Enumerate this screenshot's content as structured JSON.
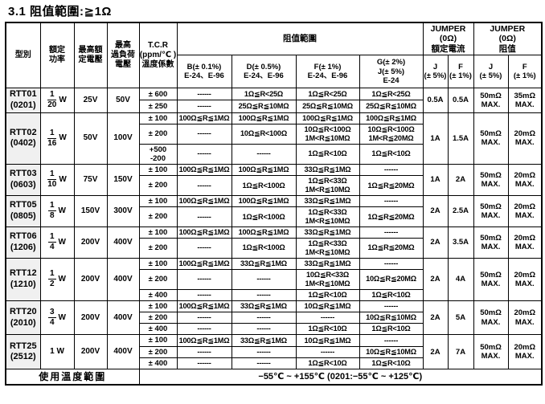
{
  "title": "3.1 阻值範圍:≧1Ω",
  "header": {
    "col_model": "型別",
    "col_power": "額定\n功率",
    "col_max_voltage": "最高額\n定電壓",
    "col_overload": "最高\n過負荷\n電壓",
    "col_tcr": "T.C.R\n(ppm/℃ )\n溫度係數",
    "group_range": "阻值範圍",
    "range_b": "B(± 0.1%)\nE-24、E-96",
    "range_d": "D(± 0.5%)\nE-24、E-96",
    "range_f": "F(± 1%)\nE-24、E-96",
    "range_g": "G(± 2%)\nJ(± 5%)\nE-24",
    "group_jumper_current": "JUMPER\n(0Ω)\n額定電流",
    "group_jumper_resistance": "JUMPER\n(0Ω)\n阻值",
    "sub_j": "J\n(± 5%)",
    "sub_f": "F\n(± 1%)"
  },
  "rows": [
    {
      "model": "RTT01",
      "size": "(0201)",
      "power": {
        "num": "1",
        "den": "20",
        "unit": "W"
      },
      "max_voltage": "25V",
      "overload_voltage": "50V",
      "tcr_rows": [
        {
          "tcr": "± 600",
          "b": "------",
          "d": "1Ω≦R<25Ω",
          "f": "1Ω≦R<25Ω",
          "g": "1Ω≦R<25Ω"
        },
        {
          "tcr": "± 250",
          "b": "------",
          "d": "25Ω≦R≦10MΩ",
          "f": "25Ω≦R≦10MΩ",
          "g": "25Ω≦R≦10MΩ"
        }
      ],
      "jumper": {
        "j_current": "0.5A",
        "f_current": "0.5A",
        "j_res": "50mΩ\nMAX.",
        "f_res": "35mΩ\nMAX."
      }
    },
    {
      "model": "RTT02",
      "size": "(0402)",
      "power": {
        "num": "1",
        "den": "16",
        "unit": "W"
      },
      "max_voltage": "50V",
      "overload_voltage": "100V",
      "tcr_rows": [
        {
          "tcr": "± 100",
          "b": "100Ω≦R≦1MΩ",
          "d": "100Ω≦R≦1MΩ",
          "f": "100Ω≦R≦1MΩ",
          "g": "100Ω≦R≦1MΩ"
        },
        {
          "tcr": "± 200",
          "b": "------",
          "d": "10Ω≦R<100Ω",
          "f": "10Ω≦R<100Ω\n1M<R≦10MΩ",
          "g": "10Ω≦R<100Ω\n1M<R≦20MΩ"
        },
        {
          "tcr": "+500\n-200",
          "b": "------",
          "d": "------",
          "f": "1Ω≦R<10Ω",
          "g": "1Ω≦R<10Ω"
        }
      ],
      "jumper": {
        "j_current": "1A",
        "f_current": "1.5A",
        "j_res": "50mΩ\nMAX.",
        "f_res": "20mΩ\nMAX."
      }
    },
    {
      "model": "RTT03",
      "size": "(0603)",
      "power": {
        "num": "1",
        "den": "10",
        "unit": "W"
      },
      "max_voltage": "75V",
      "overload_voltage": "150V",
      "tcr_rows": [
        {
          "tcr": "± 100",
          "b": "100Ω≦R≦1MΩ",
          "d": "100Ω≦R≦1MΩ",
          "f": "33Ω≦R≦1MΩ",
          "g": "------"
        },
        {
          "tcr": "± 200",
          "b": "------",
          "d": "1Ω≦R<100Ω",
          "f": "1Ω≦R<33Ω\n1M<R≦10MΩ",
          "g": "1Ω≦R≦20MΩ"
        }
      ],
      "jumper": {
        "j_current": "1A",
        "f_current": "2A",
        "j_res": "50mΩ\nMAX.",
        "f_res": "20mΩ\nMAX."
      }
    },
    {
      "model": "RTT05",
      "size": "(0805)",
      "power": {
        "num": "1",
        "den": "8",
        "unit": "W"
      },
      "max_voltage": "150V",
      "overload_voltage": "300V",
      "tcr_rows": [
        {
          "tcr": "± 100",
          "b": "100Ω≦R≦1MΩ",
          "d": "100Ω≦R≦1MΩ",
          "f": "33Ω≦R≦1MΩ",
          "g": "------"
        },
        {
          "tcr": "± 200",
          "b": "------",
          "d": "1Ω≦R<100Ω",
          "f": "1Ω≦R<33Ω\n1M<R≦10MΩ",
          "g": "1Ω≦R≦20MΩ"
        }
      ],
      "jumper": {
        "j_current": "2A",
        "f_current": "2.5A",
        "j_res": "50mΩ\nMAX.",
        "f_res": "20mΩ\nMAX."
      }
    },
    {
      "model": "RTT06",
      "size": "(1206)",
      "power": {
        "num": "1",
        "den": "4",
        "unit": "W"
      },
      "max_voltage": "200V",
      "overload_voltage": "400V",
      "tcr_rows": [
        {
          "tcr": "± 100",
          "b": "100Ω≦R≦1MΩ",
          "d": "100Ω≦R≦1MΩ",
          "f": "33Ω≦R≦1MΩ",
          "g": "------"
        },
        {
          "tcr": "± 200",
          "b": "------",
          "d": "1Ω≦R<100Ω",
          "f": "1Ω≦R<33Ω\n1M<R≦10MΩ",
          "g": "1Ω≦R≦20MΩ"
        }
      ],
      "jumper": {
        "j_current": "2A",
        "f_current": "3.5A",
        "j_res": "50mΩ\nMAX.",
        "f_res": "20mΩ\nMAX."
      }
    },
    {
      "model": "RTT12",
      "size": "(1210)",
      "power": {
        "num": "1",
        "den": "2",
        "unit": "W"
      },
      "max_voltage": "200V",
      "overload_voltage": "400V",
      "tcr_rows": [
        {
          "tcr": "± 100",
          "b": "100Ω≦R≦1MΩ",
          "d": "33Ω≦R≦1MΩ",
          "f": "33Ω≦R≦1MΩ",
          "g": "------"
        },
        {
          "tcr": "± 200",
          "b": "------",
          "d": "------",
          "f": "10Ω≦R<33Ω\n1M<R≦10MΩ",
          "g": "10Ω≦R≦20MΩ"
        },
        {
          "tcr": "± 400",
          "b": "------",
          "d": "------",
          "f": "1Ω≦R<10Ω",
          "g": "1Ω≦R<10Ω"
        }
      ],
      "jumper": {
        "j_current": "2A",
        "f_current": "4A",
        "j_res": "50mΩ\nMAX.",
        "f_res": "20mΩ\nMAX."
      }
    },
    {
      "model": "RTT20",
      "size": "(2010)",
      "power": {
        "num": "3",
        "den": "4",
        "unit": "W"
      },
      "max_voltage": "200V",
      "overload_voltage": "400V",
      "tcr_rows": [
        {
          "tcr": "± 100",
          "b": "100Ω≦R≦1MΩ",
          "d": "33Ω≦R≦1MΩ",
          "f": "10Ω≦R≦1MΩ",
          "g": "------"
        },
        {
          "tcr": "± 200",
          "b": "------",
          "d": "------",
          "f": "------",
          "g": "10Ω≦R≦10MΩ"
        },
        {
          "tcr": "± 400",
          "b": "------",
          "d": "------",
          "f": "1Ω≦R<10Ω",
          "g": "1Ω≦R<10Ω"
        }
      ],
      "jumper": {
        "j_current": "2A",
        "f_current": "5A",
        "j_res": "50mΩ\nMAX.",
        "f_res": "20mΩ\nMAX."
      }
    },
    {
      "model": "RTT25",
      "size": "(2512)",
      "power": {
        "text": "1 W"
      },
      "max_voltage": "200V",
      "overload_voltage": "400V",
      "tcr_rows": [
        {
          "tcr": "± 100",
          "b": "100Ω≦R≦1MΩ",
          "d": "33Ω≦R≦1MΩ",
          "f": "10Ω≦R≦1MΩ",
          "g": "------"
        },
        {
          "tcr": "± 200",
          "b": "------",
          "d": "------",
          "f": "------",
          "g": "10Ω≦R≦10MΩ"
        },
        {
          "tcr": "± 400",
          "b": "------",
          "d": "------",
          "f": "1Ω≦R<10Ω",
          "g": "1Ω≦R<10Ω"
        }
      ],
      "jumper": {
        "j_current": "2A",
        "f_current": "7A",
        "j_res": "50mΩ\nMAX.",
        "f_res": "20mΩ\nMAX."
      }
    }
  ],
  "footer": {
    "label": "使用溫度範圍",
    "value": "−55℃ ~ +155℃  (0201:−55℃ ~ +125℃)"
  }
}
